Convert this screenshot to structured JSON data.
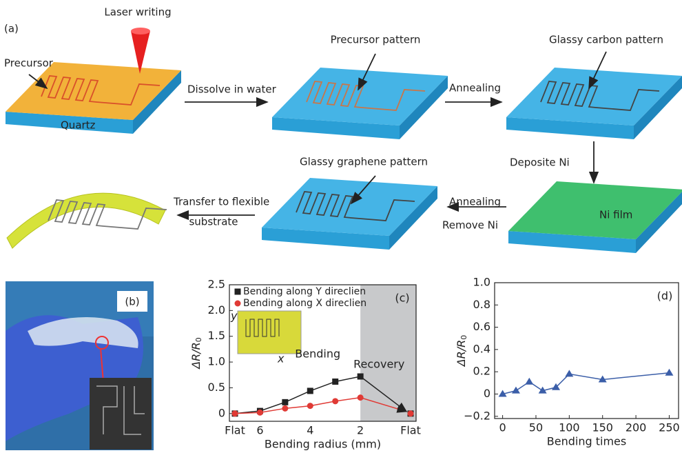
{
  "figure": {
    "panel_a": "(a)",
    "laser": "Laser writing",
    "precursor": "Precursor",
    "quartz": "Quartz",
    "dissolve": "Dissolve in water",
    "precursor_pattern": "Precursor pattern",
    "annealing_1": "Annealing",
    "glassy_carbon": "Glassy carbon pattern",
    "deposite": "Deposite Ni",
    "ni_film": "Ni film",
    "annealing_2": "Annealing",
    "remove_ni": "Remove Ni",
    "glassy_graphene": "Glassy graphene pattern",
    "transfer_1": "Transfer to flexible",
    "transfer_2": "substrate",
    "panel_b": "(b)"
  },
  "chart_data": [
    {
      "type": "line",
      "panel": "(c)",
      "x_label": "Bending radius (mm)",
      "y_label": "ΔR/R",
      "y_label_sub": "0",
      "categories": [
        "Flat",
        "6",
        null,
        "4",
        null,
        "2",
        null,
        "Flat"
      ],
      "ylim": [
        -0.15,
        2.5
      ],
      "yticks": [
        0,
        0.5,
        {
          "value": 1,
          "label": "1.0"
        },
        1.5,
        {
          "value": 2,
          "label": "2.0"
        },
        2.5
      ],
      "annotations": {
        "bending": "Bending",
        "recovery": "Recovery",
        "inset_y": "y",
        "inset_x": "x"
      },
      "series": [
        {
          "name": "Bending along Y direclien",
          "color": "#222222",
          "marker": "square",
          "values": [
            0,
            0.05,
            0.22,
            0.44,
            0.62,
            0.72,
            null,
            0
          ]
        },
        {
          "name": "Bending along X direclien",
          "color": "#e03a35",
          "marker": "circle",
          "values": [
            0,
            0.02,
            0.1,
            0.15,
            0.24,
            0.31,
            null,
            0
          ]
        }
      ]
    },
    {
      "type": "line",
      "panel": "(d)",
      "x_label": "Bending times",
      "y_label": "ΔR/R",
      "y_label_sub": "0",
      "x": [
        0,
        20,
        40,
        60,
        80,
        100,
        150,
        250
      ],
      "xlim": [
        -12,
        264
      ],
      "xticks": [
        0,
        50,
        100,
        150,
        200,
        250
      ],
      "ylim": [
        -0.22,
        1.0
      ],
      "yticks": [
        {
          "value": -0.2,
          "label": "−0.2"
        },
        0,
        0.2,
        0.4,
        0.6,
        0.8,
        {
          "value": 1,
          "label": "1.0"
        }
      ],
      "series": [
        {
          "color": "#3b5ea8",
          "marker": "triangle",
          "values": [
            0,
            0.03,
            0.11,
            0.03,
            0.06,
            0.18,
            0.13,
            0.19
          ]
        }
      ]
    }
  ]
}
